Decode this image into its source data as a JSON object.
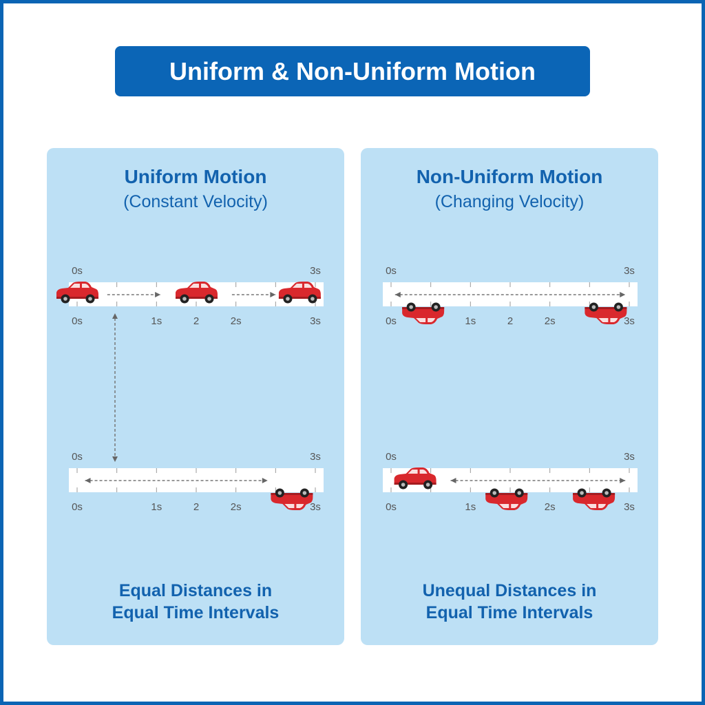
{
  "title": "Uniform & Non-Uniform Motion",
  "colors": {
    "accent": "#0b65b6",
    "panel": "#bde0f5",
    "car": "#d9282d",
    "track": "#ffffff"
  },
  "panels": {
    "uniform": {
      "title": "Uniform Motion",
      "subtitle": "(Constant Velocity)",
      "footer_line1": "Equal Distances in",
      "footer_line2": "Equal Time Intervals"
    },
    "nonuniform": {
      "title": "Non-Uniform Motion",
      "subtitle": "(Changing Velocity)",
      "footer_line1": "Unequal Distances in",
      "footer_line2": "Equal Time Intervals"
    }
  },
  "tracks": [
    {
      "id": "uniform-top",
      "top_labels": [
        "0s",
        "3s"
      ],
      "bottom_labels": [
        "0s",
        "1s",
        "2",
        "2s",
        "3s"
      ],
      "cars": [
        {
          "t": 0.0,
          "flipped": false
        },
        {
          "t": 1.5,
          "flipped": false
        },
        {
          "t": 2.8,
          "flipped": false
        }
      ],
      "arrows": [
        {
          "from": 0.38,
          "to": 1.05,
          "dir": "right"
        },
        {
          "from": 1.95,
          "to": 2.5,
          "dir": "right"
        }
      ]
    },
    {
      "id": "uniform-bottom",
      "top_labels": [
        "0s",
        "3s"
      ],
      "bottom_labels": [
        "0s",
        "1s",
        "2",
        "2s",
        "3s"
      ],
      "cars": [
        {
          "t": 2.7,
          "flipped": true
        }
      ],
      "arrows": [
        {
          "from": 0.1,
          "to": 2.4,
          "dir": "both"
        }
      ]
    },
    {
      "id": "nonuniform-top",
      "top_labels": [
        "0s",
        "3s"
      ],
      "bottom_labels": [
        "0s",
        "1s",
        "2",
        "2s",
        "3s"
      ],
      "cars": [
        {
          "t": 0.4,
          "flipped": true
        },
        {
          "t": 2.7,
          "flipped": true
        }
      ],
      "arrows": [
        {
          "from": 0.05,
          "to": 2.95,
          "dir": "both"
        }
      ]
    },
    {
      "id": "nonuniform-bottom",
      "top_labels": [
        "0s",
        "3s"
      ],
      "bottom_labels": [
        "0s",
        "1s",
        "2",
        "2s",
        "3s"
      ],
      "cars": [
        {
          "t": 0.3,
          "flipped": false
        },
        {
          "t": 1.45,
          "flipped": true
        },
        {
          "t": 2.55,
          "flipped": true
        }
      ],
      "arrows": [
        {
          "from": 0.75,
          "to": 2.95,
          "dir": "both"
        }
      ]
    }
  ]
}
